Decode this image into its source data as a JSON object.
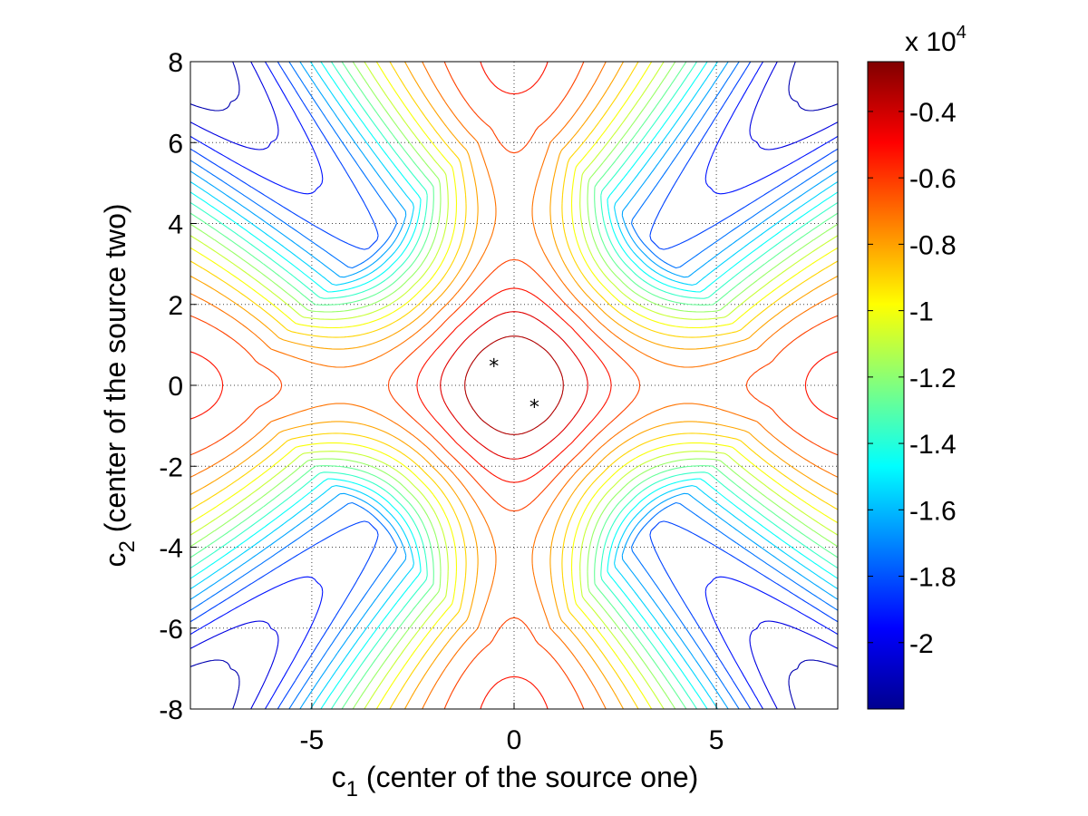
{
  "chart_data": {
    "type": "contour",
    "xlabel_main": "c",
    "xlabel_sub": "1",
    "xlabel_rest": " (center of the source one)",
    "ylabel_main": "c",
    "ylabel_sub": "2",
    "ylabel_rest": " (center of the source two)",
    "xlim": [
      -8,
      8
    ],
    "ylim": [
      -8,
      8
    ],
    "xticks": [
      -5,
      0,
      5
    ],
    "xtick_labels": [
      "-5",
      "0",
      "5"
    ],
    "yticks": [
      -8,
      -6,
      -4,
      -2,
      0,
      2,
      4,
      6,
      8
    ],
    "ytick_labels": [
      "-8",
      "-6",
      "-4",
      "-2",
      "0",
      "2",
      "4",
      "6",
      "8"
    ],
    "grid": true,
    "grid_style": "dotted",
    "colormap": "jet",
    "colorbar": {
      "exponent_label": "x 10",
      "exponent_power": "4",
      "range": [
        -2.2,
        -0.25
      ],
      "ticks": [
        -2,
        -1.8,
        -1.6,
        -1.4,
        -1.2,
        -1,
        -0.8,
        -0.6,
        -0.4
      ],
      "tick_labels": [
        "-2",
        "-1.8",
        "-1.6",
        "-1.4",
        "-1.2",
        "-1",
        "-0.8",
        "-0.6",
        "-0.4"
      ]
    },
    "contour_levels": 20,
    "markers": [
      {
        "x": -0.5,
        "y": 0.5,
        "symbol": "*"
      },
      {
        "x": 0.5,
        "y": -0.5,
        "symbol": "*"
      }
    ]
  }
}
